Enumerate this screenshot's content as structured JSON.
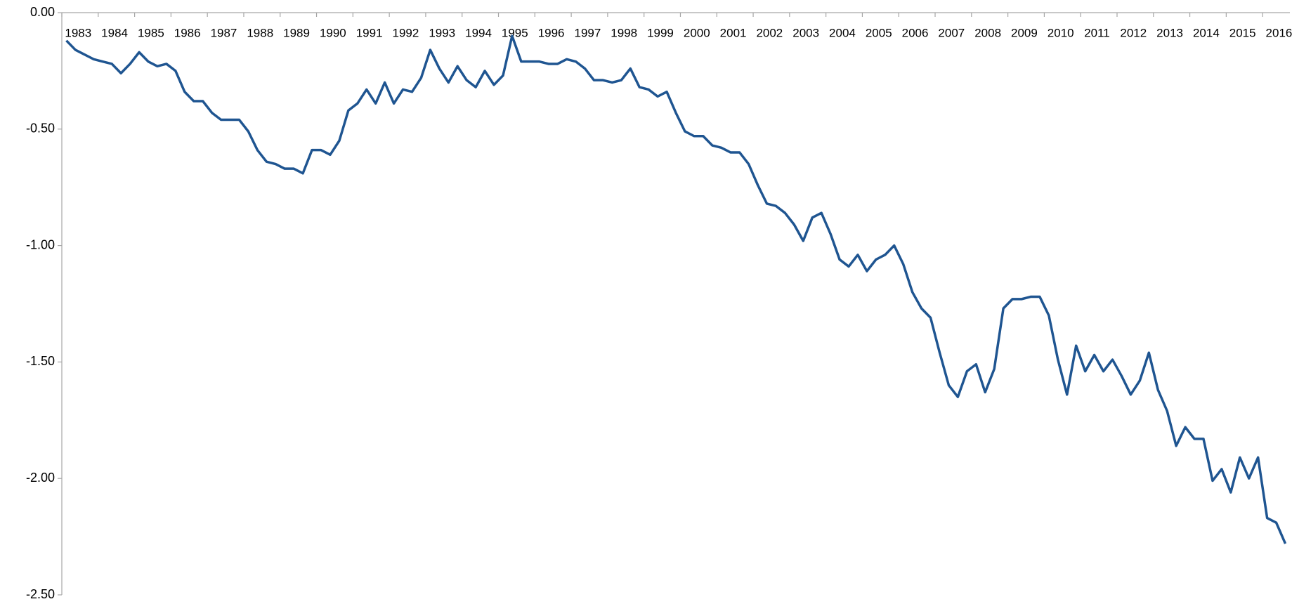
{
  "chart_data": {
    "type": "line",
    "color": "#1f5591",
    "categories": [
      "1983",
      null,
      null,
      null,
      "1984",
      null,
      null,
      null,
      "1985",
      null,
      null,
      null,
      "1986",
      null,
      null,
      null,
      "1987",
      null,
      null,
      null,
      "1988",
      null,
      null,
      null,
      "1989",
      null,
      null,
      null,
      "1990",
      null,
      null,
      null,
      "1991",
      null,
      null,
      null,
      "1992",
      null,
      null,
      null,
      "1993",
      null,
      null,
      null,
      "1994",
      null,
      null,
      null,
      "1995",
      null,
      null,
      null,
      "1996",
      null,
      null,
      null,
      "1997",
      null,
      null,
      null,
      "1998",
      null,
      null,
      null,
      "1999",
      null,
      null,
      null,
      "2000",
      null,
      null,
      null,
      "2001",
      null,
      null,
      null,
      "2002",
      null,
      null,
      null,
      "2003",
      null,
      null,
      null,
      "2004",
      null,
      null,
      null,
      "2005",
      null,
      null,
      null,
      "2006",
      null,
      null,
      null,
      "2007",
      null,
      null,
      null,
      "2008",
      null,
      null,
      null,
      "2009",
      null,
      null,
      null,
      "2010",
      null,
      null,
      null,
      "2011",
      null,
      null,
      null,
      "2012",
      null,
      null,
      null,
      "2013",
      null,
      null,
      null,
      "2014",
      null,
      null,
      null,
      "2015",
      null,
      null,
      null,
      "2016",
      null,
      null
    ],
    "values": [
      -0.12,
      -0.16,
      -0.18,
      -0.2,
      -0.21,
      -0.22,
      -0.26,
      -0.22,
      -0.17,
      -0.21,
      -0.23,
      -0.22,
      -0.25,
      -0.34,
      -0.38,
      -0.38,
      -0.43,
      -0.46,
      -0.46,
      -0.46,
      -0.51,
      -0.59,
      -0.64,
      -0.65,
      -0.67,
      -0.67,
      -0.69,
      -0.59,
      -0.59,
      -0.61,
      -0.55,
      -0.42,
      -0.39,
      -0.33,
      -0.39,
      -0.3,
      -0.39,
      -0.33,
      -0.34,
      -0.28,
      -0.16,
      -0.24,
      -0.3,
      -0.23,
      -0.29,
      -0.32,
      -0.25,
      -0.31,
      -0.27,
      -0.1,
      -0.21,
      -0.21,
      -0.21,
      -0.22,
      -0.22,
      -0.2,
      -0.21,
      -0.24,
      -0.29,
      -0.29,
      -0.3,
      -0.29,
      -0.24,
      -0.32,
      -0.33,
      -0.36,
      -0.34,
      -0.43,
      -0.51,
      -0.53,
      -0.53,
      -0.57,
      -0.58,
      -0.6,
      -0.6,
      -0.65,
      -0.74,
      -0.82,
      -0.83,
      -0.86,
      -0.91,
      -0.98,
      -0.88,
      -0.86,
      -0.95,
      -1.06,
      -1.09,
      -1.04,
      -1.11,
      -1.06,
      -1.04,
      -1.0,
      -1.08,
      -1.2,
      -1.27,
      -1.31,
      -1.46,
      -1.6,
      -1.65,
      -1.54,
      -1.51,
      -1.63,
      -1.53,
      -1.27,
      -1.23,
      -1.23,
      -1.22,
      -1.22,
      -1.3,
      -1.49,
      -1.64,
      -1.43,
      -1.54,
      -1.47,
      -1.54,
      -1.49,
      -1.56,
      -1.64,
      -1.58,
      -1.46,
      -1.62,
      -1.71,
      -1.86,
      -1.78,
      -1.83,
      -1.83,
      -2.01,
      -1.96,
      -2.06,
      -1.91,
      -2.0,
      -1.91,
      -2.17,
      -2.19,
      -2.28
    ],
    "ylim": [
      -2.5,
      0
    ],
    "yticks": [
      {
        "value": 0,
        "label": "0.00"
      },
      {
        "value": -0.5,
        "label": "-0.50"
      },
      {
        "value": -1,
        "label": "-1.00"
      },
      {
        "value": -1.5,
        "label": "-1.50"
      },
      {
        "value": -2,
        "label": "-2.00"
      },
      {
        "value": -2.5,
        "label": "-2.50"
      }
    ],
    "grid": false
  }
}
